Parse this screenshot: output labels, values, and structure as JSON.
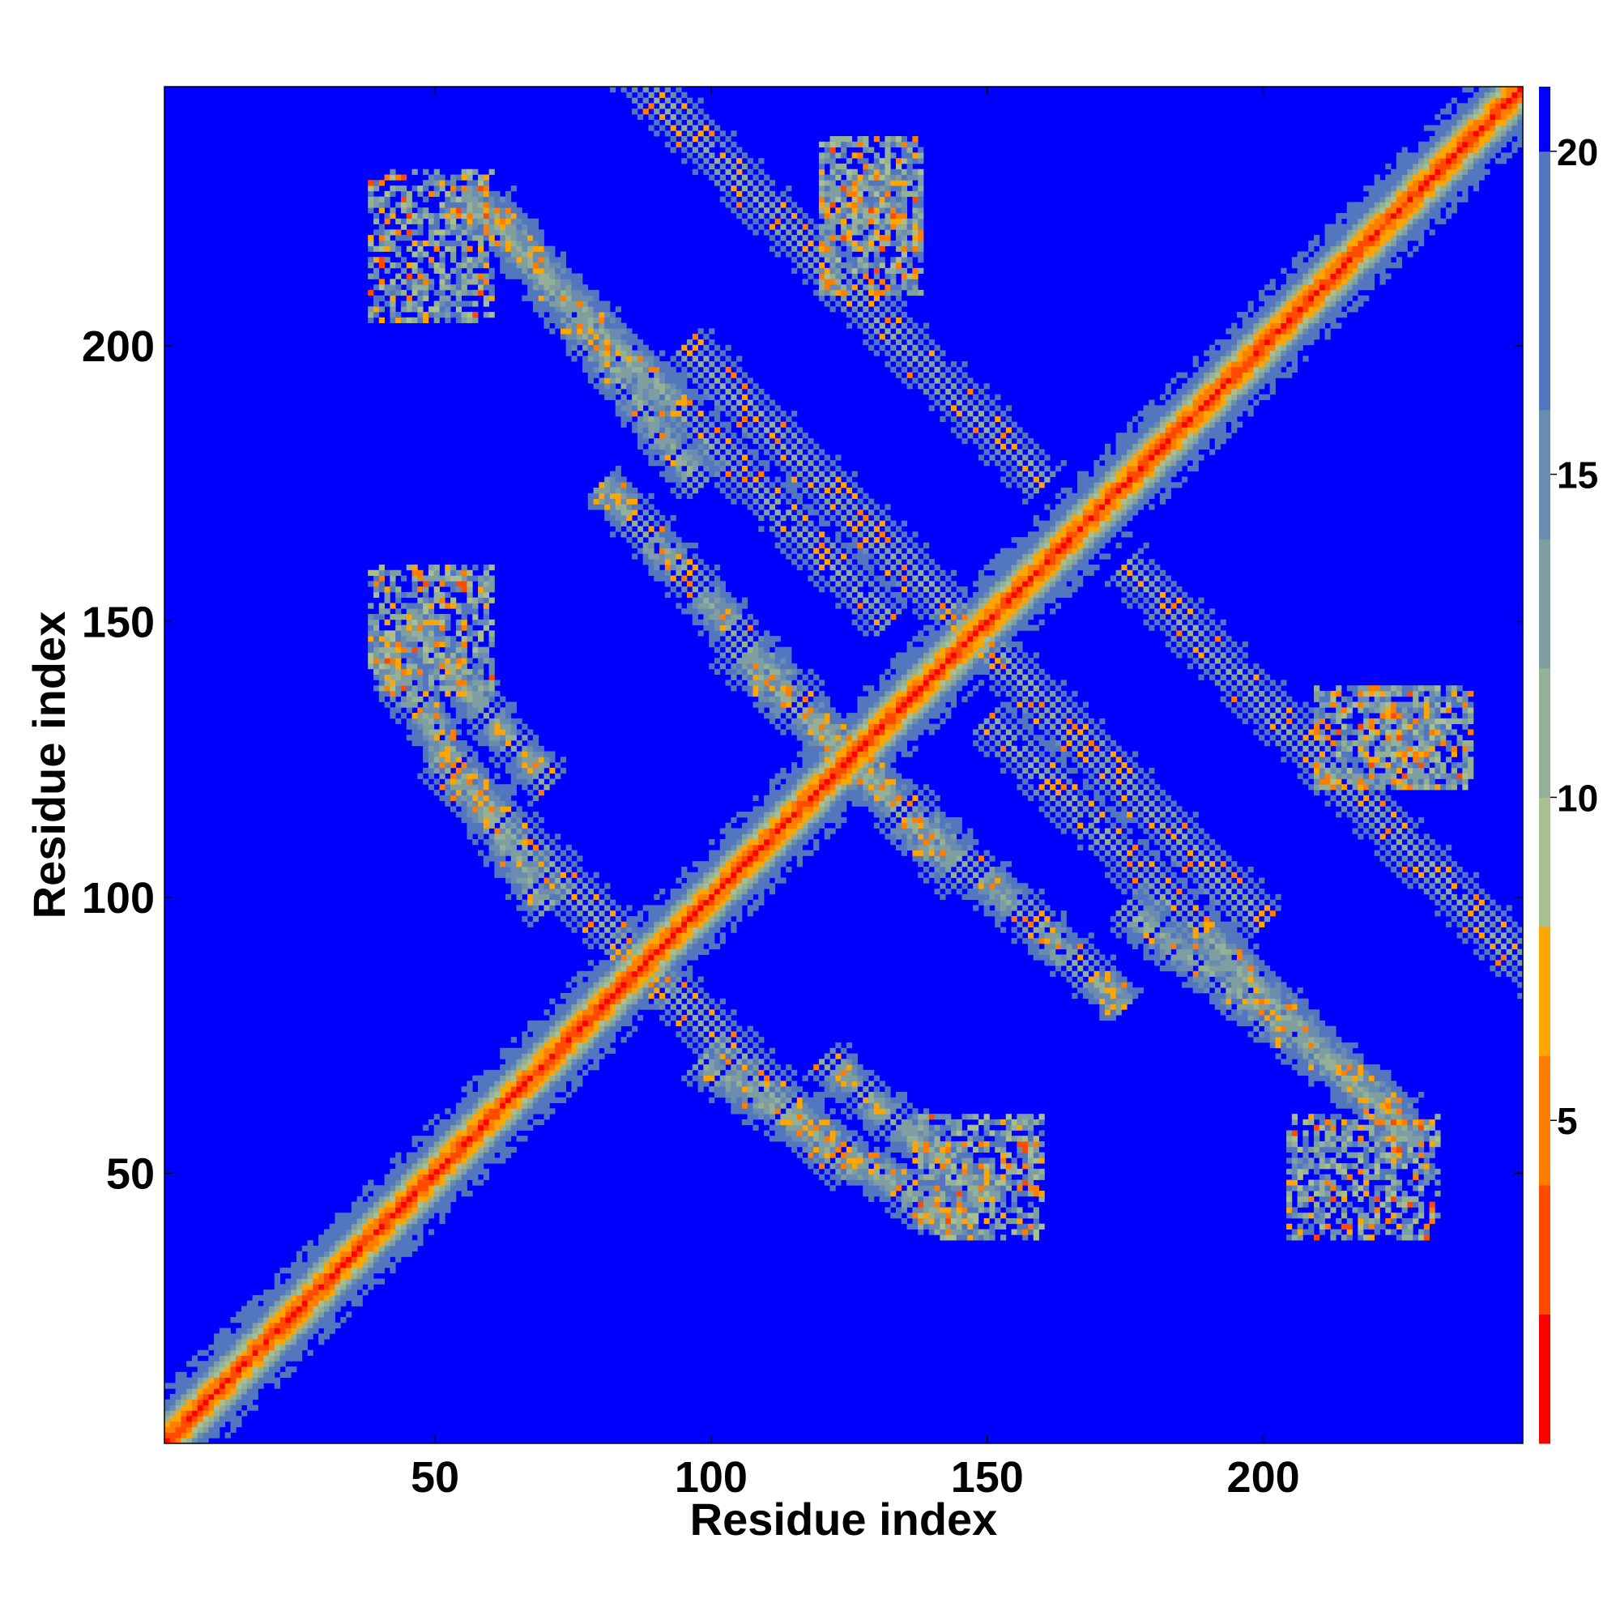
{
  "chart_data": {
    "type": "heatmap",
    "title": "",
    "xlabel": "Residue index",
    "ylabel": "Residue index",
    "n_residues": 247,
    "xlim": [
      1,
      247
    ],
    "ylim": [
      1,
      247
    ],
    "x_ticks": [
      50,
      100,
      150,
      200
    ],
    "y_ticks": [
      50,
      100,
      150,
      200
    ],
    "colorbar": {
      "range": [
        0,
        21
      ],
      "ticks": [
        5,
        10,
        15,
        20
      ],
      "colors": [
        "#ff0000",
        "#ff4a00",
        "#ff7e00",
        "#ffa500",
        "#a9c08e",
        "#94b197",
        "#7f9ea2",
        "#6a8cb0",
        "#5377be",
        "#0000ff"
      ],
      "bins": [
        0,
        2,
        4,
        6,
        8,
        10,
        12,
        14,
        16,
        20,
        21
      ],
      "background_value": 21
    },
    "diagonal_band": {
      "description": "contact distance grows with |i-j|",
      "values_by_offset": [
        1,
        3,
        5,
        7,
        10,
        13,
        16,
        18
      ]
    },
    "off_diagonal_contacts": [
      {
        "i_start": 55,
        "i_end": 132,
        "j_start": 150,
        "j_end": 228,
        "orientation": "anti-parallel"
      },
      {
        "i_start": 80,
        "i_end": 160,
        "j_start": 175,
        "j_end": 255,
        "orientation": "anti-parallel"
      },
      {
        "i_start": 103,
        "i_end": 175,
        "j_start": 80,
        "j_end": 145,
        "orientation": "anti-parallel"
      },
      {
        "i_start": 50,
        "i_end": 125,
        "j_start": 50,
        "j_end": 125,
        "orientation": "anti-parallel"
      },
      {
        "i_start": 120,
        "i_end": 200,
        "j_start": 95,
        "j_end": 175,
        "orientation": "anti-parallel"
      },
      {
        "i_start": 175,
        "i_end": 225,
        "j_start": 60,
        "j_end": 98,
        "orientation": "anti-parallel"
      },
      {
        "i_start": 40,
        "i_end": 70,
        "j_start": 98,
        "j_end": 145,
        "orientation": "anti-parallel"
      },
      {
        "i_start": 120,
        "i_end": 150,
        "j_start": 45,
        "j_end": 70,
        "orientation": "anti-parallel"
      },
      {
        "i_start": 210,
        "i_end": 232,
        "j_start": 120,
        "j_end": 138,
        "orientation": "patch"
      },
      {
        "i_start": 120,
        "i_end": 138,
        "j_start": 218,
        "j_end": 238,
        "orientation": "patch"
      },
      {
        "i_start": 138,
        "i_end": 160,
        "j_start": 38,
        "j_end": 60,
        "orientation": "patch"
      },
      {
        "i_start": 205,
        "i_end": 232,
        "j_start": 38,
        "j_end": 60,
        "orientation": "patch"
      }
    ]
  }
}
